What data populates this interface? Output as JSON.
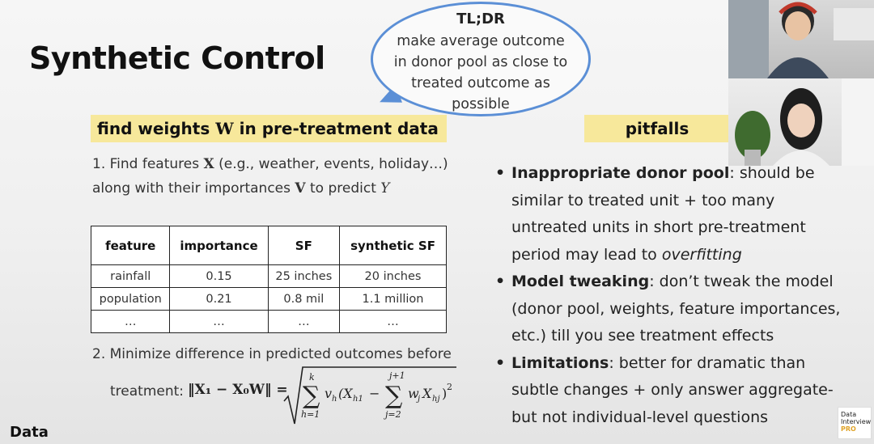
{
  "slide": {
    "title": "Synthetic Control",
    "bubble": {
      "title": "TL;DR",
      "body": "make average outcome in donor pool as close to treated outcome as possible"
    },
    "left_heading": {
      "prefix": "find weights ",
      "symbol": "W",
      "suffix": " in pre-treatment data"
    },
    "right_heading": "pitfalls",
    "step1": {
      "a": "1. Find features ",
      "x": "X",
      "b": " (e.g., weather, events, holiday…) along with their importances ",
      "v": "V",
      "c": " to predict ",
      "y": "Y"
    },
    "table": {
      "headers": [
        "feature",
        "importance",
        "SF",
        "synthetic SF"
      ],
      "rows": [
        [
          "rainfall",
          "0.15",
          "25 inches",
          "20 inches"
        ],
        [
          "population",
          "0.21",
          "0.8 mil",
          "1.1 million"
        ],
        [
          "…",
          "…",
          "…",
          "…"
        ]
      ]
    },
    "step2": "2. Minimize difference in predicted outcomes before",
    "formula": {
      "label": "treatment:",
      "norm": "‖X₁ − X₀W‖ =",
      "sum1_top": "k",
      "sum1_bottom": "h=1",
      "term1": "v",
      "term1_sub": "h",
      "term2": "(X",
      "term2_sub": "h1",
      "minus": "−",
      "sum2_top": "j+1",
      "sum2_bottom": "j=2",
      "term3": "w",
      "term3_sub": "j",
      "term4": "X",
      "term4_sub": "hj",
      "closing": ")",
      "power": "2"
    },
    "pitfalls": [
      {
        "head": "Inappropriate donor pool",
        "text": ": should be similar to treated unit + too many untreated units in short pre-treatment period may lead to ",
        "em": "overfitting"
      },
      {
        "head": "Model tweaking",
        "text": ": don’t tweak the model (donor pool, weights, feature importances, etc.) till you see treatment effects",
        "em": ""
      },
      {
        "head": "Limitations",
        "text": ": better for dramatic than subtle changes + only answer aggregate- but not individual-level questions",
        "em": ""
      }
    ],
    "footer": "Data",
    "logo": {
      "line1": "Data",
      "line2": "Interview",
      "line3": "PRO"
    }
  },
  "colors": {
    "highlight": "#f7e89b",
    "bubble_border": "#5b8fd6",
    "logo_accent": "#e0a42a"
  }
}
